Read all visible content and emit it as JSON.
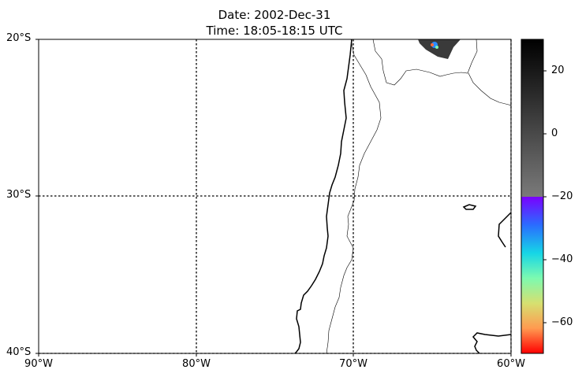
{
  "header": {
    "date": "Date: 2002-Dec-31",
    "time": "Time: 18:05-18:15 UTC"
  },
  "map": {
    "lon_range": [
      -90,
      -60
    ],
    "lat_range": [
      -40,
      -20
    ],
    "lat_labels": [
      "20°S",
      "30°S",
      "40°S"
    ],
    "lon_labels": [
      "90°W",
      "80°W",
      "70°W",
      "60°W"
    ],
    "gridline_style": "dotted"
  },
  "colorbar": {
    "range": [
      -70,
      30
    ],
    "tick_labels": [
      "20",
      "0",
      "−20",
      "−40",
      "−60"
    ],
    "palette_upper": "grayscale",
    "palette_lower": "rainbow (red→yellow→green→cyan→blue→violet)"
  },
  "colors": {
    "coast": "#000000",
    "border": "#000000",
    "grid": "#000000"
  }
}
